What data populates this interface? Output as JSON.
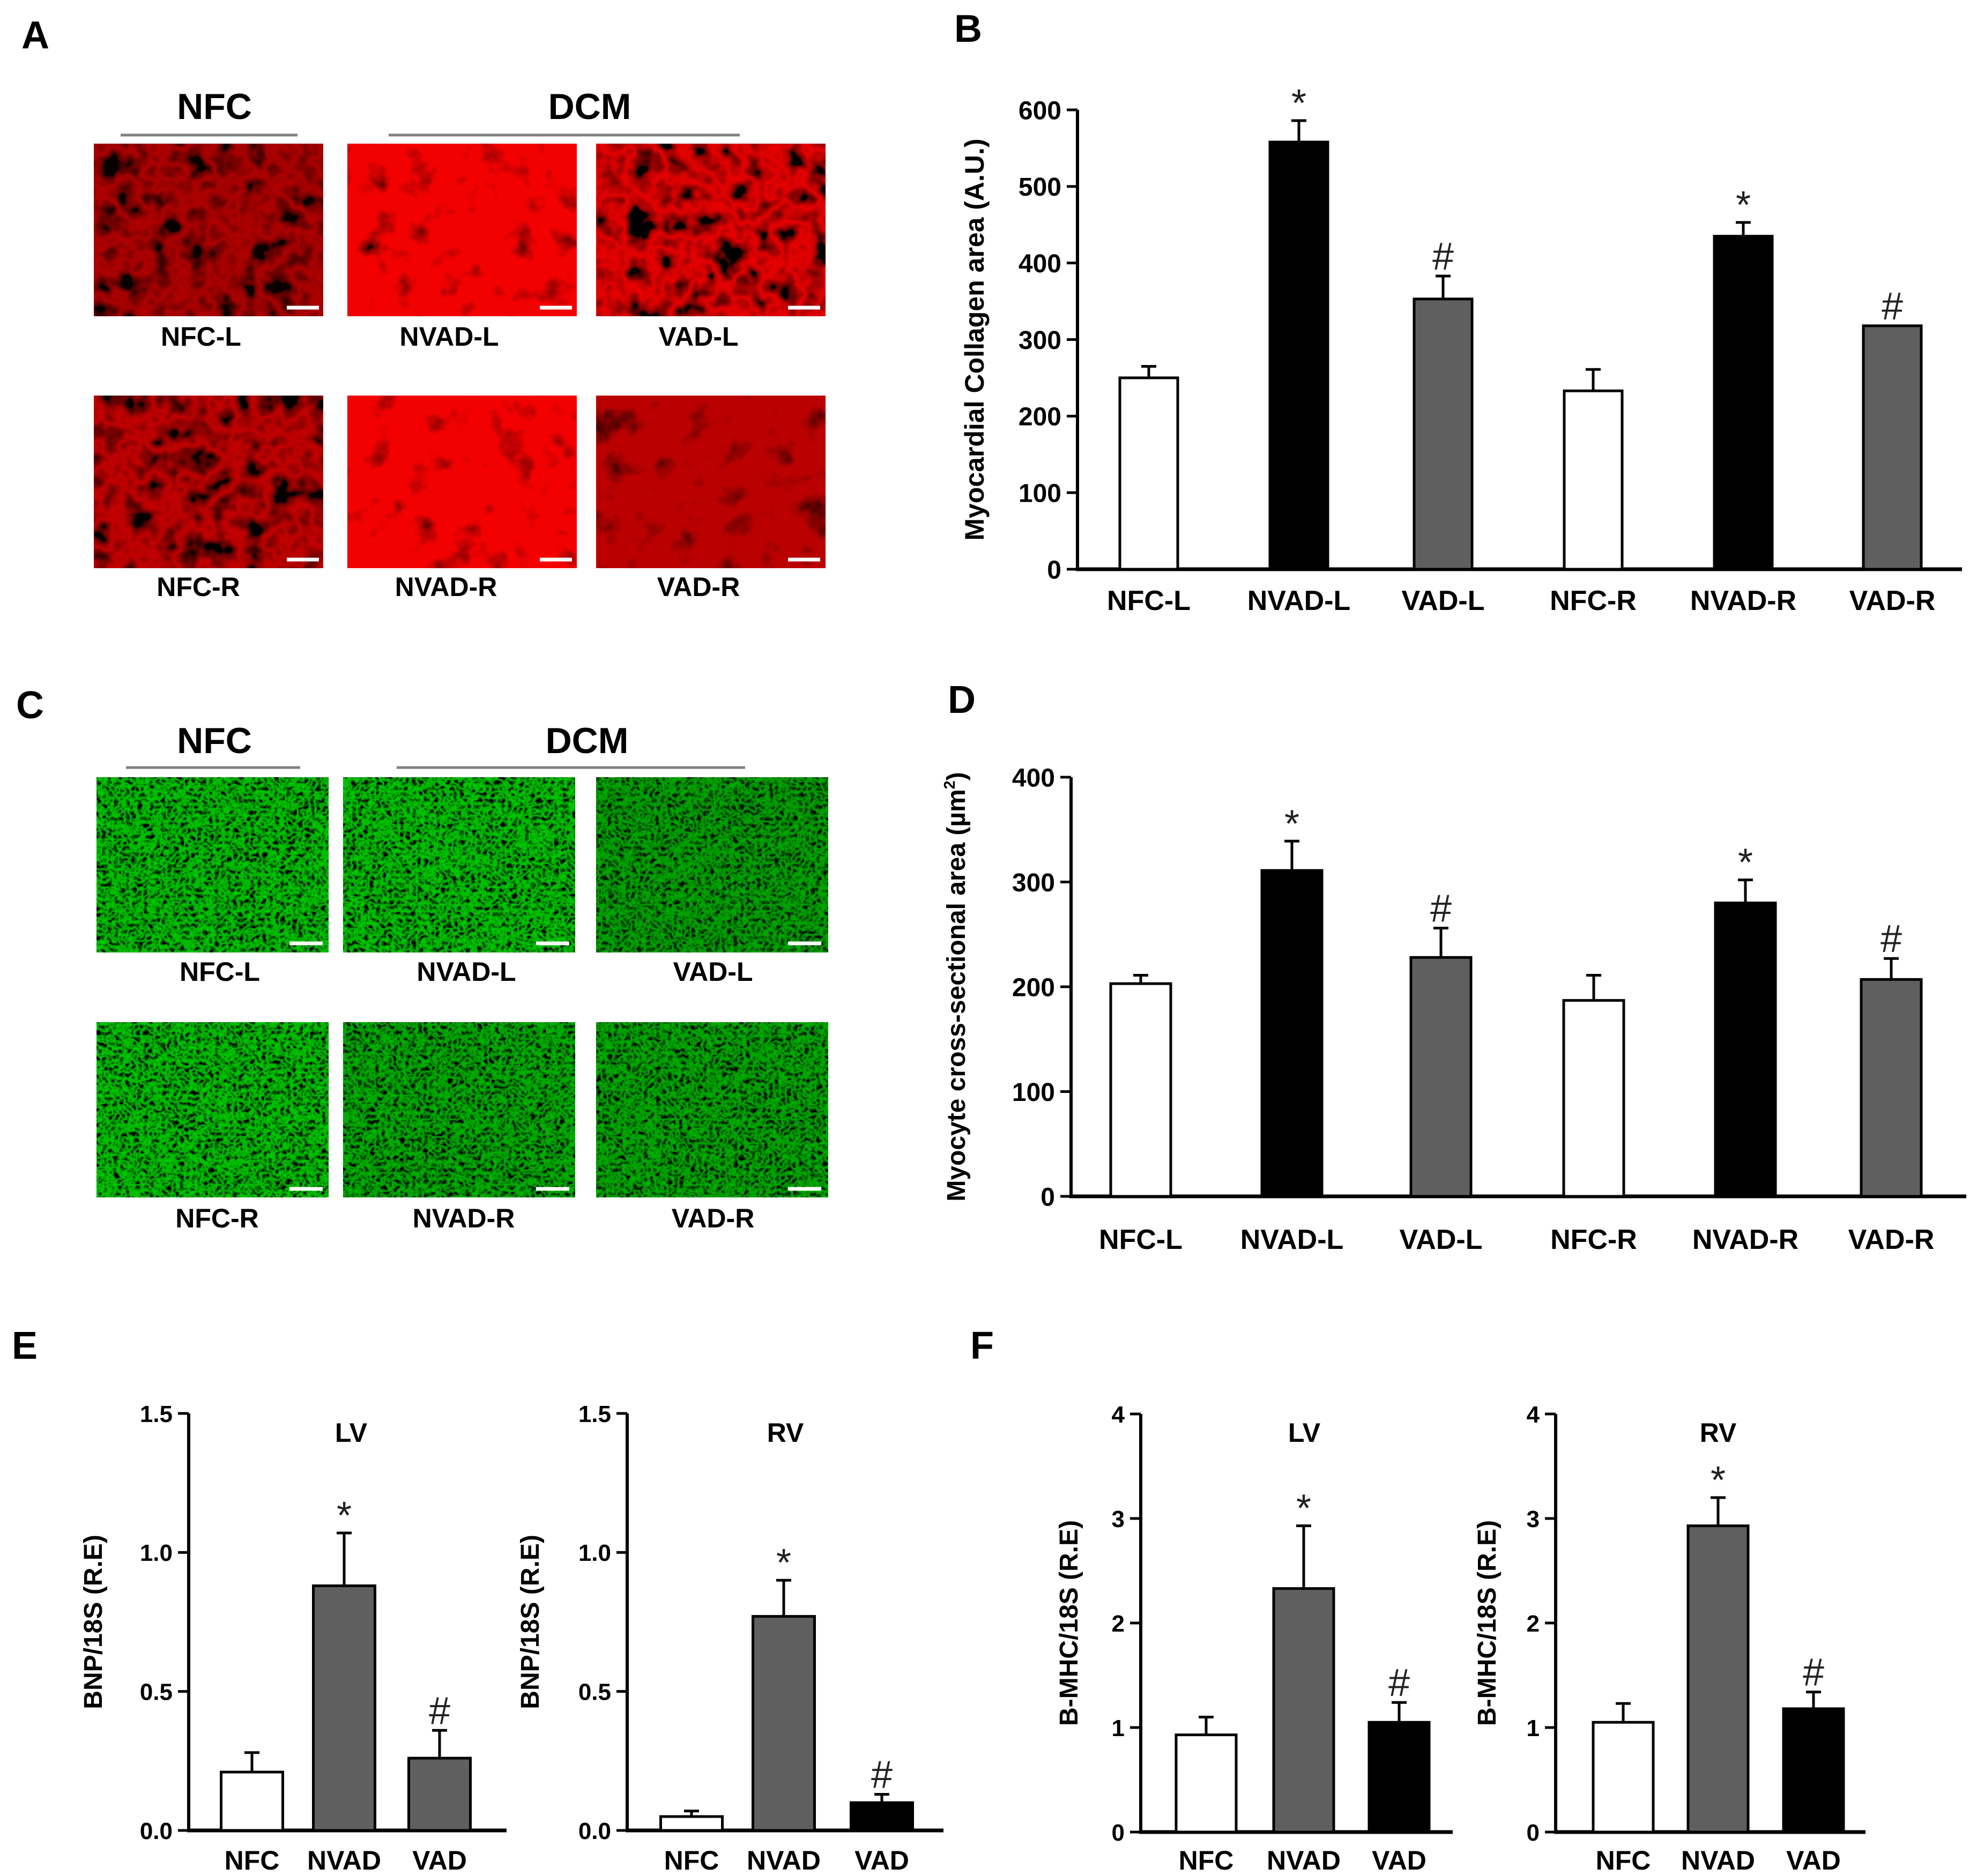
{
  "colors": {
    "white_bar": "#ffffff",
    "black_bar": "#000000",
    "gray_bar": "#5f5f5f",
    "red": "#d40000",
    "green": "#2aa62a",
    "stroke": "#000000"
  },
  "panel_letters": {
    "a": "A",
    "b": "B",
    "c": "C",
    "d": "D",
    "e": "E",
    "f": "F"
  },
  "panel_a": {
    "group_labels": [
      "NFC",
      "DCM"
    ],
    "image_labels": [
      "NFC-L",
      "NVAD-L",
      "VAD-L",
      "NFC-R",
      "NVAD-R",
      "VAD-R"
    ],
    "stain": "red"
  },
  "panel_c": {
    "group_labels": [
      "NFC",
      "DCM"
    ],
    "image_labels": [
      "NFC-L",
      "NVAD-L",
      "VAD-L",
      "NFC-R",
      "NVAD-R",
      "VAD-R"
    ],
    "stain": "green"
  },
  "chart_data": [
    {
      "id": "B",
      "type": "bar",
      "title": "",
      "ylabel": "Myocardial Collagen area (A.U.)",
      "xlabel": "",
      "categories": [
        "NFC-L",
        "NVAD-L",
        "VAD-L",
        "NFC-R",
        "NVAD-R",
        "VAD-R"
      ],
      "values": [
        250,
        558,
        353,
        233,
        435,
        318
      ],
      "errors": [
        15,
        28,
        30,
        28,
        18,
        0
      ],
      "fills": [
        "white",
        "black",
        "gray",
        "white",
        "black",
        "gray"
      ],
      "annotations": [
        "",
        "*",
        "#",
        "",
        "*",
        "#"
      ],
      "ylim": [
        0,
        600
      ],
      "yticks": [
        0,
        100,
        200,
        300,
        400,
        500,
        600
      ]
    },
    {
      "id": "D",
      "type": "bar",
      "title": "",
      "ylabel": "Myocyte cross-sectional area (µm²)",
      "ylabel_parts": [
        "Myocyte cross-sectional area (µm",
        "2",
        ")"
      ],
      "xlabel": "",
      "categories": [
        "NFC-L",
        "NVAD-L",
        "VAD-L",
        "NFC-R",
        "NVAD-R",
        "VAD-R"
      ],
      "values": [
        203,
        311,
        228,
        187,
        280,
        207
      ],
      "errors": [
        8,
        28,
        28,
        24,
        22,
        20
      ],
      "fills": [
        "white",
        "black",
        "gray",
        "white",
        "black",
        "gray"
      ],
      "annotations": [
        "",
        "*",
        "#",
        "",
        "*",
        "#"
      ],
      "ylim": [
        0,
        400
      ],
      "yticks": [
        0,
        100,
        200,
        300,
        400
      ]
    },
    {
      "id": "E-LV",
      "type": "bar",
      "title": "LV",
      "ylabel": "BNP/18S (R.E)",
      "xlabel": "",
      "categories": [
        "NFC",
        "NVAD",
        "VAD"
      ],
      "values": [
        0.21,
        0.88,
        0.26
      ],
      "errors": [
        0.07,
        0.19,
        0.1
      ],
      "fills": [
        "white",
        "gray",
        "gray"
      ],
      "annotations": [
        "",
        "*",
        "#"
      ],
      "ylim": [
        0,
        1.5
      ],
      "yticks": [
        0.0,
        0.5,
        1.0,
        1.5
      ],
      "ytick_labels": [
        "0.0",
        "0.5",
        "1.0",
        "1.5"
      ]
    },
    {
      "id": "E-RV",
      "type": "bar",
      "title": "RV",
      "ylabel": "BNP/18S (R.E)",
      "xlabel": "",
      "categories": [
        "NFC",
        "NVAD",
        "VAD"
      ],
      "values": [
        0.05,
        0.77,
        0.1
      ],
      "errors": [
        0.02,
        0.13,
        0.03
      ],
      "fills": [
        "white",
        "gray",
        "black"
      ],
      "annotations": [
        "",
        "*",
        "#"
      ],
      "ylim": [
        0,
        1.5
      ],
      "yticks": [
        0.0,
        0.5,
        1.0,
        1.5
      ],
      "ytick_labels": [
        "0.0",
        "0.5",
        "1.0",
        "1.5"
      ]
    },
    {
      "id": "F-LV",
      "type": "bar",
      "title": "LV",
      "ylabel": "B-MHC/18S (R.E)",
      "xlabel": "",
      "categories": [
        "NFC",
        "NVAD",
        "VAD"
      ],
      "values": [
        0.93,
        2.33,
        1.05
      ],
      "errors": [
        0.17,
        0.6,
        0.19
      ],
      "fills": [
        "white",
        "gray",
        "black"
      ],
      "annotations": [
        "",
        "*",
        "#"
      ],
      "ylim": [
        0,
        4
      ],
      "yticks": [
        0,
        1,
        2,
        3,
        4
      ],
      "ytick_labels": [
        "0",
        "1",
        "2",
        "3",
        "4"
      ]
    },
    {
      "id": "F-RV",
      "type": "bar",
      "title": "RV",
      "ylabel": "B-MHC/18S (R.E)",
      "xlabel": "",
      "categories": [
        "NFC",
        "NVAD",
        "VAD"
      ],
      "values": [
        1.05,
        2.93,
        1.18
      ],
      "errors": [
        0.18,
        0.27,
        0.16
      ],
      "fills": [
        "white",
        "gray",
        "black"
      ],
      "annotations": [
        "",
        "*",
        "#"
      ],
      "ylim": [
        0,
        4
      ],
      "yticks": [
        0,
        1,
        2,
        3,
        4
      ],
      "ytick_labels": [
        "0",
        "1",
        "2",
        "3",
        "4"
      ]
    }
  ]
}
